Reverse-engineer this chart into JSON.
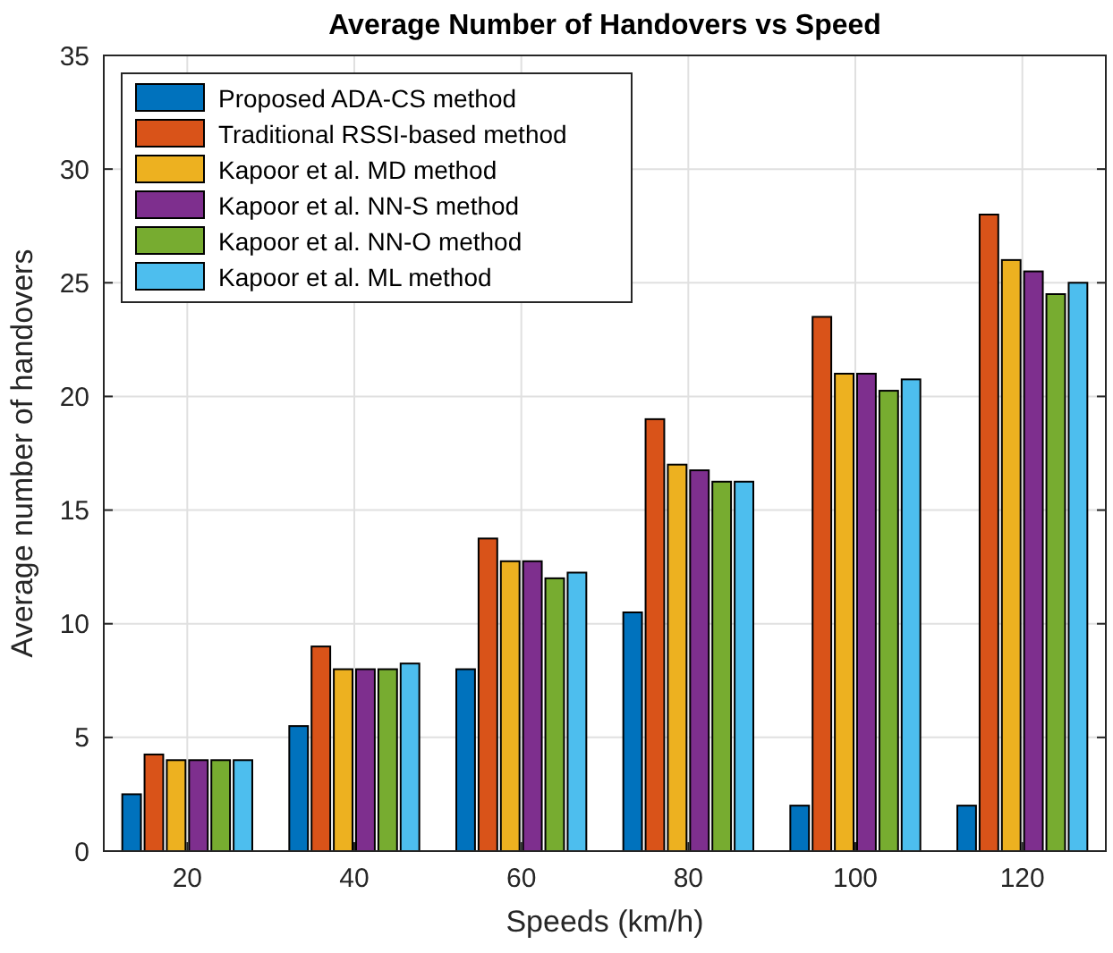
{
  "chart_data": {
    "type": "bar",
    "title": "Average Number of Handovers vs Speed",
    "xlabel": "Speeds (km/h)",
    "ylabel": "Average number of handovers",
    "categories": [
      "20",
      "40",
      "60",
      "80",
      "100",
      "120"
    ],
    "series": [
      {
        "name": "Proposed ADA-CS method",
        "color": "#0072bd",
        "values": [
          2.5,
          5.5,
          8,
          10.5,
          2,
          2
        ]
      },
      {
        "name": "Traditional RSSI-based method",
        "color": "#d95319",
        "values": [
          4.25,
          9,
          13.75,
          19,
          23.5,
          28
        ]
      },
      {
        "name": "Kapoor et al. MD method",
        "color": "#edb120",
        "values": [
          4,
          8,
          12.75,
          17,
          21,
          26
        ]
      },
      {
        "name": "Kapoor et al. NN-S method",
        "color": "#7e2f8e",
        "values": [
          4,
          8,
          12.75,
          16.75,
          21,
          25.5
        ]
      },
      {
        "name": "Kapoor et al. NN-O method",
        "color": "#77ac30",
        "values": [
          4,
          8,
          12,
          16.25,
          20.25,
          24.5
        ]
      },
      {
        "name": "Kapoor et al. ML method",
        "color": "#4dbeee",
        "values": [
          4,
          8.25,
          12.25,
          16.25,
          20.75,
          25
        ]
      }
    ],
    "ylim": [
      0,
      35
    ],
    "yticks": [
      0,
      5,
      10,
      15,
      20,
      25,
      30,
      35
    ],
    "grid": true,
    "legend": "top left"
  }
}
